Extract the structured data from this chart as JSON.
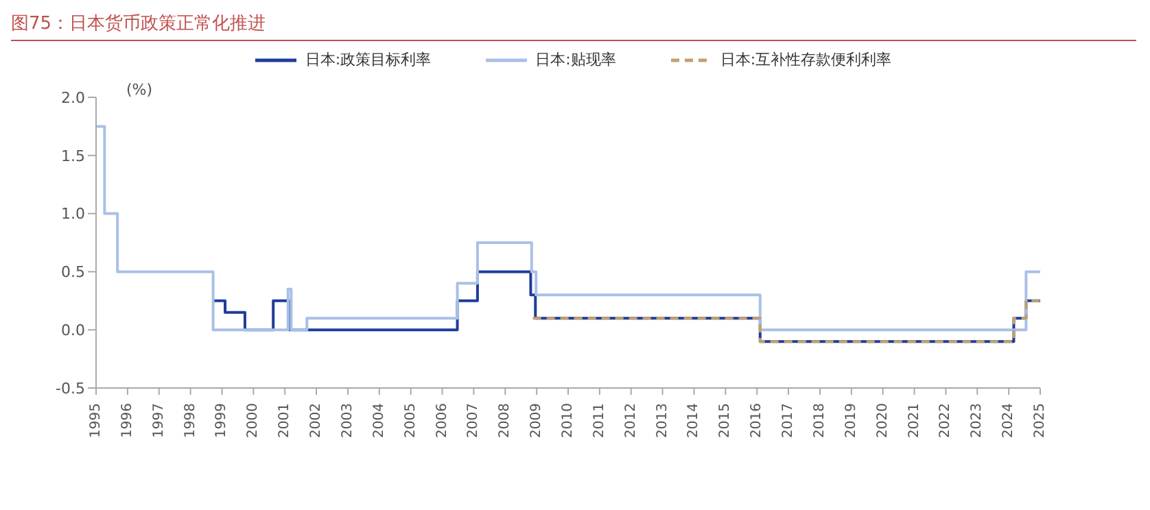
{
  "chart_data": {
    "type": "step",
    "title": "图75：日本货币政策正常化推进",
    "ylabel": "(%)",
    "legend": "top",
    "grid": false,
    "marker": "none",
    "xlim": [
      1995,
      2025
    ],
    "xticks": [
      1995,
      1996,
      1997,
      1998,
      1999,
      2000,
      2001,
      2002,
      2003,
      2004,
      2005,
      2006,
      2007,
      2008,
      2009,
      2010,
      2011,
      2012,
      2013,
      2014,
      2015,
      2016,
      2017,
      2018,
      2019,
      2020,
      2021,
      2022,
      2023,
      2024,
      2025
    ],
    "ylim": [
      -0.5,
      2.0
    ],
    "yticks": [
      {
        "value": -0.5,
        "label": "-0.5"
      },
      {
        "value": 0,
        "label": "0.0"
      },
      {
        "value": 0.5,
        "label": "0.5"
      },
      {
        "value": 1,
        "label": "1.0"
      },
      {
        "value": 1.5,
        "label": "1.5"
      },
      {
        "value": 2,
        "label": "2.0"
      }
    ],
    "series": [
      {
        "name": "日本:政策目标利率",
        "color": "#1f3c99",
        "line_style": "solid",
        "x": [
          1998.72,
          1999.1,
          1999.73,
          2000.63,
          2001.13,
          2006.48,
          2007.12,
          2008.81,
          2008.96,
          2016.1,
          2024.16,
          2024.55,
          2025
        ],
        "values": [
          0.25,
          0.15,
          0,
          0.25,
          0,
          0.25,
          0.5,
          0.3,
          0.1,
          -0.1,
          0.1,
          0.25,
          0.25
        ]
      },
      {
        "name": "日本:贴现率",
        "color": "#a9c0e8",
        "line_style": "solid",
        "x": [
          1995,
          1995.27,
          1995.68,
          1998.72,
          2001.1,
          2001.2,
          2001.7,
          2006.48,
          2007.12,
          2008.84,
          2008.98,
          2016.1,
          2024.55,
          2025
        ],
        "values": [
          1.75,
          1.0,
          0.5,
          0,
          0.35,
          0,
          0.1,
          0.4,
          0.75,
          0.5,
          0.3,
          0,
          0.5,
          0.5
        ]
      },
      {
        "name": "日本:互补性存款便利利率",
        "color": "#c0a070",
        "line_style": "dashed",
        "x": [
          2008.88,
          2016.1,
          2024.16,
          2024.55,
          2025
        ],
        "values": [
          0.1,
          -0.1,
          0.1,
          0.25,
          0.25
        ]
      }
    ]
  }
}
